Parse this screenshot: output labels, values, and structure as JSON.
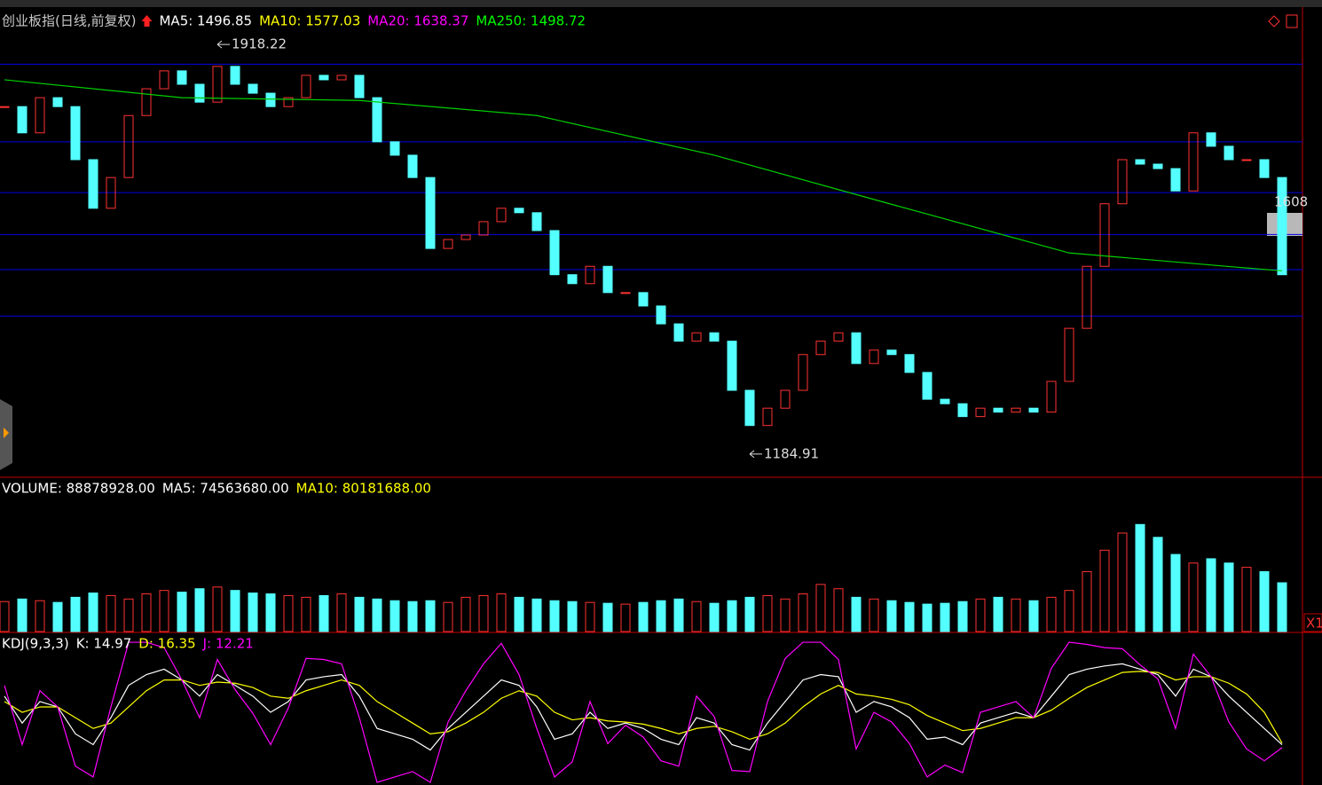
{
  "chart_data": [
    {
      "type": "candlestick",
      "legend": [
        {
          "text": "创业板指(日线,前复权)",
          "color": "#c8c8c8"
        },
        {
          "text": "MA5: 1496.85",
          "color": "#ffffff"
        },
        {
          "text": "MA10: 1577.03",
          "color": "#ffff00"
        },
        {
          "text": "MA20: 1638.37",
          "color": "#ff00ff"
        },
        {
          "text": "MA250: 1498.72",
          "color": "#00ff00"
        }
      ],
      "ylim": [
        1145,
        1982
      ],
      "up_color": "#ff3232",
      "down_color": "#54ffff",
      "values": [
        1807,
        1760,
        1823,
        1807,
        1712,
        1625,
        1680,
        1791,
        1839,
        1871,
        1847,
        1815,
        1879,
        1847,
        1831,
        1807,
        1823,
        1863,
        1855,
        1863,
        1823,
        1744,
        1720,
        1680,
        1553,
        1569,
        1577,
        1601,
        1625,
        1617,
        1585,
        1506,
        1490,
        1521,
        1474,
        1474,
        1450,
        1418,
        1387,
        1402,
        1387,
        1299,
        1236,
        1267,
        1299,
        1363,
        1387,
        1402,
        1347,
        1371,
        1363,
        1331,
        1283,
        1275,
        1252,
        1267,
        1260,
        1267,
        1260,
        1315,
        1410,
        1521,
        1633,
        1712,
        1704,
        1696,
        1656,
        1760,
        1736,
        1712,
        1712,
        1680,
        1506
      ],
      "levels": [
        1883,
        1744,
        1653,
        1578,
        1515,
        1432
      ],
      "level_color": "#0000e6",
      "lines": [
        {
          "color": "#00d000",
          "x": [
            0,
            10,
            20,
            30,
            40,
            50,
            60,
            70,
            72
          ],
          "values": [
            1855,
            1823,
            1818,
            1791,
            1720,
            1632,
            1545,
            1518,
            1513
          ]
        }
      ],
      "annotations": [
        {
          "x": 12,
          "value": 1918.22
        },
        {
          "x": 42,
          "value": 1184.91
        }
      ],
      "side_label": "1608"
    },
    {
      "type": "bar",
      "legend": [
        {
          "text": "VOLUME: 88878928.00",
          "color": "#ffffff"
        },
        {
          "text": "MA5: 74563680.00",
          "color": "#ffffff"
        },
        {
          "text": "MA10: 80181688.00",
          "color": "#ffff00"
        }
      ],
      "ylim": [
        0,
        265000000
      ],
      "values": [
        54600000,
        59280000,
        56160000,
        53040000,
        62400000,
        70200000,
        65520000,
        59280000,
        68640000,
        74880000,
        71760000,
        78000000,
        81120000,
        74880000,
        70200000,
        68640000,
        65520000,
        62400000,
        65520000,
        68640000,
        62400000,
        59280000,
        56160000,
        54600000,
        56160000,
        53040000,
        62400000,
        65520000,
        68640000,
        62400000,
        59280000,
        56160000,
        54600000,
        53040000,
        51480000,
        49920000,
        53040000,
        56160000,
        59280000,
        54600000,
        51480000,
        56160000,
        62400000,
        65520000,
        59280000,
        68640000,
        85800000,
        78000000,
        62400000,
        59280000,
        56160000,
        53040000,
        49920000,
        51480000,
        54600000,
        59280000,
        62400000,
        59280000,
        56160000,
        62400000,
        74880000,
        109200000,
        148200000,
        179400000,
        195000000,
        171600000,
        140400000,
        124800000,
        132600000,
        124800000,
        117000000,
        109200000,
        88878928
      ],
      "scale_label": "X1"
    },
    {
      "type": "line",
      "legend": [
        {
          "text": "KDJ(9,3,3)",
          "color": "#ffffff"
        },
        {
          "text": "K: 14.97",
          "color": "#ffffff"
        },
        {
          "text": "D: 16.35",
          "color": "#ffff00"
        },
        {
          "text": "J: 12.21",
          "color": "#ff00ff"
        }
      ],
      "ylim": [
        -20,
        115
      ],
      "series": [
        {
          "color": "#ffffff",
          "values": [
            60,
            35,
            55,
            50,
            25,
            15,
            40,
            70,
            80,
            85,
            75,
            60,
            80,
            70,
            60,
            45,
            55,
            75,
            78,
            80,
            60,
            30,
            25,
            20,
            10,
            30,
            45,
            60,
            75,
            70,
            50,
            20,
            25,
            45,
            30,
            35,
            30,
            20,
            15,
            40,
            35,
            15,
            10,
            35,
            55,
            75,
            80,
            78,
            45,
            55,
            50,
            40,
            20,
            22,
            15,
            35,
            40,
            45,
            40,
            60,
            80,
            85,
            88,
            90,
            85,
            80,
            60,
            85,
            78,
            60,
            45,
            30,
            14.97
          ]
        },
        {
          "color": "#ffff00",
          "values": [
            55,
            45,
            50,
            50,
            40,
            30,
            35,
            50,
            65,
            75,
            75,
            70,
            73,
            72,
            68,
            60,
            58,
            65,
            70,
            75,
            70,
            55,
            45,
            35,
            25,
            27,
            35,
            45,
            58,
            65,
            60,
            45,
            38,
            40,
            37,
            36,
            34,
            30,
            25,
            30,
            32,
            27,
            20,
            25,
            35,
            50,
            62,
            70,
            62,
            60,
            57,
            52,
            42,
            35,
            28,
            30,
            35,
            40,
            40,
            47,
            58,
            68,
            75,
            82,
            83,
            82,
            75,
            78,
            78,
            72,
            62,
            45,
            16.35
          ]
        },
        {
          "color": "#ff00ff",
          "values": [
            70,
            15,
            65,
            50,
            -5,
            -15,
            50,
            110,
            110,
            105,
            75,
            40,
            94,
            66,
            44,
            15,
            49,
            95,
            94,
            90,
            40,
            -20,
            -15,
            -10,
            -20,
            36,
            65,
            90,
            109,
            80,
            30,
            -15,
            -1,
            55,
            16,
            33,
            22,
            0,
            -5,
            60,
            41,
            -9,
            -10,
            55,
            95,
            110,
            110,
            94,
            11,
            45,
            36,
            16,
            -15,
            -4,
            -11,
            45,
            50,
            55,
            40,
            86,
            110,
            108,
            105,
            104,
            89,
            76,
            30,
            99,
            78,
            36,
            11,
            0,
            12.21
          ]
        }
      ]
    }
  ]
}
